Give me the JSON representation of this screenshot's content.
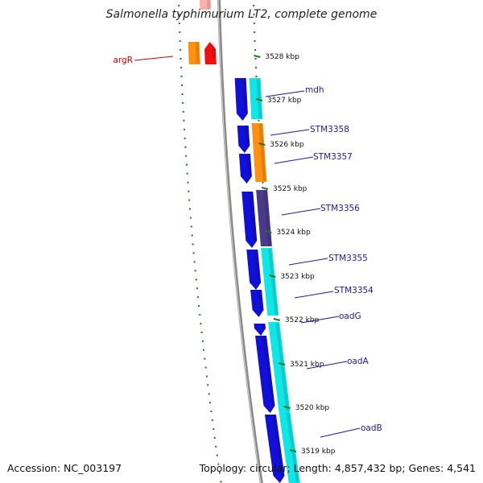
{
  "title": "Salmonella typhimurium LT2, complete genome",
  "footer": {
    "accession": "Accession: NC_003197",
    "summary": "Topology: circular; Length: 4,857,432 bp; Genes: 4,541"
  },
  "colors": {
    "backbone": "#8a8a8a",
    "tick_dots": "#1f7a1f",
    "label_blue": "#1a1aa8",
    "label_red": "#d40000",
    "gene_blue": "#1010d8",
    "gene_cyan": "#10e6e6",
    "gene_orange": "#ff9010",
    "gene_red": "#f01010",
    "gene_purple": "#4a3a8a"
  },
  "ticks": [
    {
      "label": "3528 kbp"
    },
    {
      "label": "3527 kbp"
    },
    {
      "label": "3526 kbp"
    },
    {
      "label": "3525 kbp"
    },
    {
      "label": "3524 kbp"
    },
    {
      "label": "3523 kbp"
    },
    {
      "label": "3522 kbp"
    },
    {
      "label": "3521 kbp"
    },
    {
      "label": "3520 kbp"
    },
    {
      "label": "3519 kbp"
    }
  ],
  "genes": [
    {
      "name": "argR",
      "label_color": "red"
    },
    {
      "name": "mdh",
      "label_color": "blue"
    },
    {
      "name": "STM3358",
      "label_color": "blue"
    },
    {
      "name": "STM3357",
      "label_color": "blue"
    },
    {
      "name": "STM3356",
      "label_color": "blue"
    },
    {
      "name": "STM3355",
      "label_color": "blue"
    },
    {
      "name": "STM3354",
      "label_color": "blue"
    },
    {
      "name": "oadG",
      "label_color": "blue"
    },
    {
      "name": "oadA",
      "label_color": "blue"
    },
    {
      "name": "oadB",
      "label_color": "blue"
    }
  ]
}
